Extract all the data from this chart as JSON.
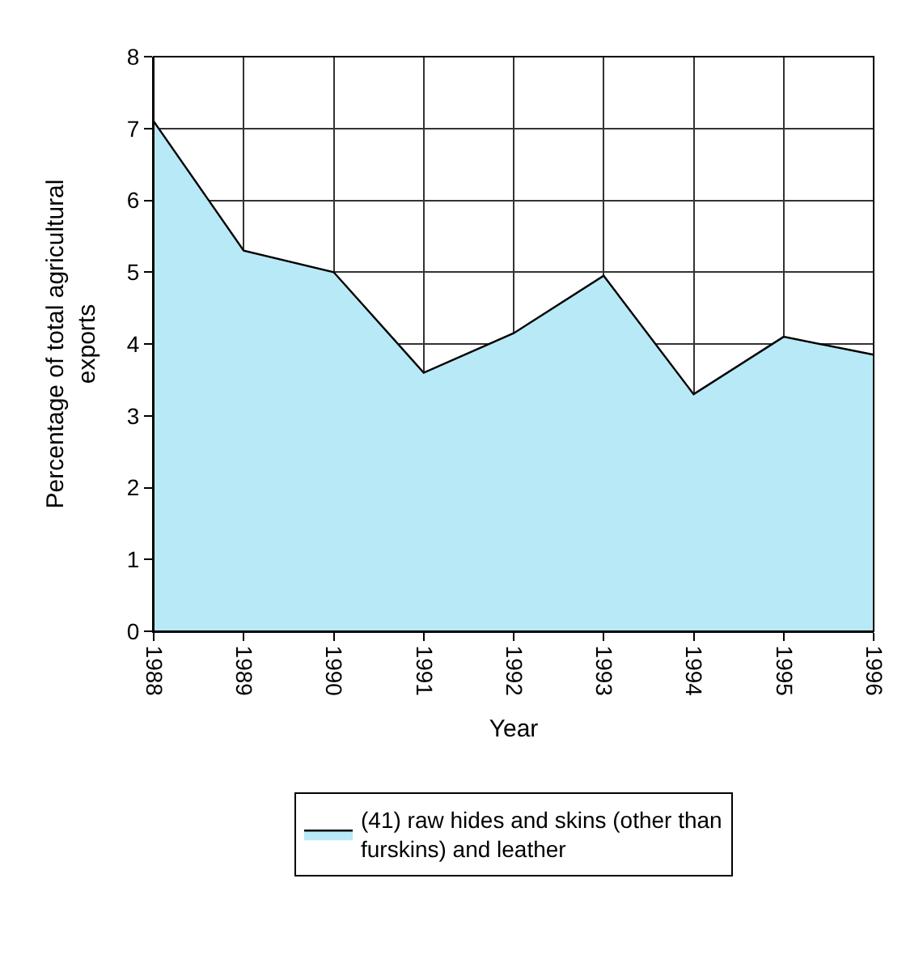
{
  "chart_data": {
    "type": "area",
    "xlabel": "Year",
    "ylabel": "Percentage of total agricultural exports",
    "categories": [
      "1988",
      "1989",
      "1990",
      "1991",
      "1992",
      "1993",
      "1994",
      "1995",
      "1996"
    ],
    "series": [
      {
        "name": "(41) raw hides and skins (other than furskins) and leather",
        "color": "#b8e9f6",
        "values": [
          7.1,
          5.3,
          5.0,
          3.6,
          4.15,
          4.95,
          3.3,
          4.1,
          3.85
        ]
      }
    ],
    "ylim": [
      0,
      8
    ],
    "yticks": [
      0,
      1,
      2,
      3,
      4,
      5,
      6,
      7,
      8
    ],
    "grid": true,
    "legend": "bottom"
  }
}
